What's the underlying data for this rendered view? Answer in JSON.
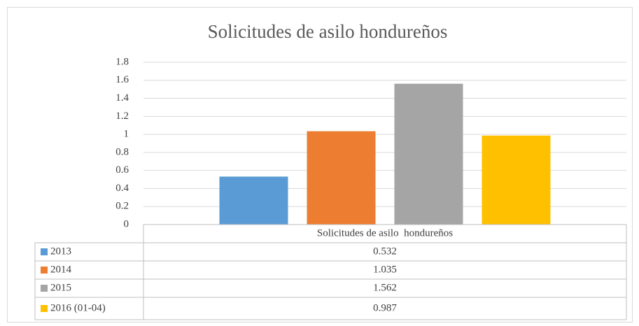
{
  "chart_data": {
    "type": "bar",
    "title": "Solicitudes de asilo hondureños",
    "categories": [
      "Solicitudes de asilo  hondureños"
    ],
    "series": [
      {
        "name": "2013",
        "color": "#5b9bd5",
        "values": [
          0.532
        ]
      },
      {
        "name": "2014",
        "color": "#ed7d31",
        "values": [
          1.035
        ]
      },
      {
        "name": "2015",
        "color": "#a5a5a5",
        "values": [
          1.562
        ]
      },
      {
        "name": "2016 (01-04)",
        "color": "#ffc000",
        "values": [
          0.987
        ]
      }
    ],
    "ylim": [
      0,
      1.8
    ],
    "yticks": [
      0,
      0.2,
      0.4,
      0.6,
      0.8,
      1,
      1.2,
      1.4,
      1.6,
      1.8
    ],
    "grid": true
  }
}
